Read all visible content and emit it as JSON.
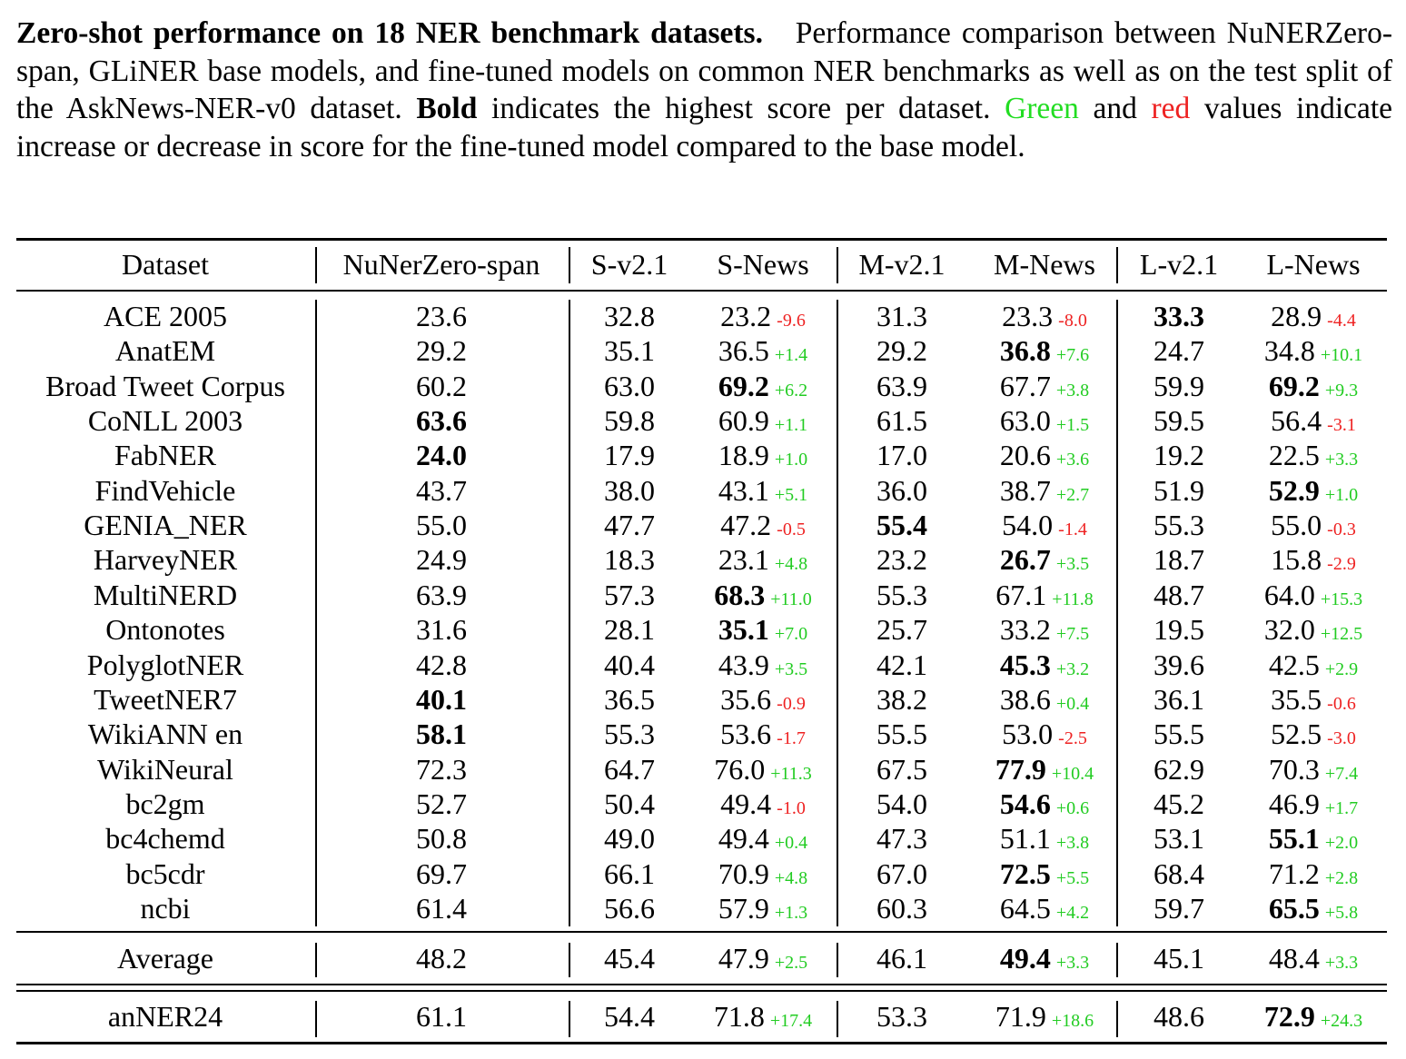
{
  "caption": {
    "lead": "Zero-shot performance on 18 NER benchmark datasets.",
    "part1": "Performance comparison between NuNERZero-span, GLiNER base models, and fine-tuned models on common NER benchmarks as well as on the test split of the AskNews-NER-v0 dataset.",
    "bold_word": "Bold",
    "part2": "indicates the highest score per dataset.",
    "green_word": "Green",
    "and_word": "and",
    "red_word": "red",
    "part3": "values indicate increase or decrease in score for the fine-tuned model compared to the base model."
  },
  "colors": {
    "increase": "#22cc22",
    "decrease": "#ee2222"
  },
  "chart_data": {
    "type": "table",
    "columns": [
      "Dataset",
      "NuNerZero-span",
      "S-v2.1",
      "S-News",
      "M-v2.1",
      "M-News",
      "L-v2.1",
      "L-News"
    ],
    "rows": [
      {
        "dataset": "ACE 2005",
        "cells": [
          {
            "v": "23.6"
          },
          {
            "v": "32.8"
          },
          {
            "v": "23.2",
            "d": "-9.6"
          },
          {
            "v": "31.3"
          },
          {
            "v": "23.3",
            "d": "-8.0"
          },
          {
            "v": "33.3",
            "b": true
          },
          {
            "v": "28.9",
            "d": "-4.4"
          }
        ]
      },
      {
        "dataset": "AnatEM",
        "cells": [
          {
            "v": "29.2"
          },
          {
            "v": "35.1"
          },
          {
            "v": "36.5",
            "d": "+1.4"
          },
          {
            "v": "29.2"
          },
          {
            "v": "36.8",
            "d": "+7.6",
            "b": true
          },
          {
            "v": "24.7"
          },
          {
            "v": "34.8",
            "d": "+10.1"
          }
        ]
      },
      {
        "dataset": "Broad Tweet Corpus",
        "cells": [
          {
            "v": "60.2"
          },
          {
            "v": "63.0"
          },
          {
            "v": "69.2",
            "d": "+6.2",
            "b": true
          },
          {
            "v": "63.9"
          },
          {
            "v": "67.7",
            "d": "+3.8"
          },
          {
            "v": "59.9"
          },
          {
            "v": "69.2",
            "d": "+9.3",
            "b": true
          }
        ]
      },
      {
        "dataset": "CoNLL 2003",
        "cells": [
          {
            "v": "63.6",
            "b": true
          },
          {
            "v": "59.8"
          },
          {
            "v": "60.9",
            "d": "+1.1"
          },
          {
            "v": "61.5"
          },
          {
            "v": "63.0",
            "d": "+1.5"
          },
          {
            "v": "59.5"
          },
          {
            "v": "56.4",
            "d": "-3.1"
          }
        ]
      },
      {
        "dataset": "FabNER",
        "cells": [
          {
            "v": "24.0",
            "b": true
          },
          {
            "v": "17.9"
          },
          {
            "v": "18.9",
            "d": "+1.0"
          },
          {
            "v": "17.0"
          },
          {
            "v": "20.6",
            "d": "+3.6"
          },
          {
            "v": "19.2"
          },
          {
            "v": "22.5",
            "d": "+3.3"
          }
        ]
      },
      {
        "dataset": "FindVehicle",
        "cells": [
          {
            "v": "43.7"
          },
          {
            "v": "38.0"
          },
          {
            "v": "43.1",
            "d": "+5.1"
          },
          {
            "v": "36.0"
          },
          {
            "v": "38.7",
            "d": "+2.7"
          },
          {
            "v": "51.9"
          },
          {
            "v": "52.9",
            "d": "+1.0",
            "b": true
          }
        ]
      },
      {
        "dataset": "GENIA_NER",
        "cells": [
          {
            "v": "55.0"
          },
          {
            "v": "47.7"
          },
          {
            "v": "47.2",
            "d": "-0.5"
          },
          {
            "v": "55.4",
            "b": true
          },
          {
            "v": "54.0",
            "d": "-1.4"
          },
          {
            "v": "55.3"
          },
          {
            "v": "55.0",
            "d": "-0.3"
          }
        ]
      },
      {
        "dataset": "HarveyNER",
        "cells": [
          {
            "v": "24.9"
          },
          {
            "v": "18.3"
          },
          {
            "v": "23.1",
            "d": "+4.8"
          },
          {
            "v": "23.2"
          },
          {
            "v": "26.7",
            "d": "+3.5",
            "b": true
          },
          {
            "v": "18.7"
          },
          {
            "v": "15.8",
            "d": "-2.9"
          }
        ]
      },
      {
        "dataset": "MultiNERD",
        "cells": [
          {
            "v": "63.9"
          },
          {
            "v": "57.3"
          },
          {
            "v": "68.3",
            "d": "+11.0",
            "b": true
          },
          {
            "v": "55.3"
          },
          {
            "v": "67.1",
            "d": "+11.8"
          },
          {
            "v": "48.7"
          },
          {
            "v": "64.0",
            "d": "+15.3"
          }
        ]
      },
      {
        "dataset": "Ontonotes",
        "cells": [
          {
            "v": "31.6"
          },
          {
            "v": "28.1"
          },
          {
            "v": "35.1",
            "d": "+7.0",
            "b": true
          },
          {
            "v": "25.7"
          },
          {
            "v": "33.2",
            "d": "+7.5"
          },
          {
            "v": "19.5"
          },
          {
            "v": "32.0",
            "d": "+12.5"
          }
        ]
      },
      {
        "dataset": "PolyglotNER",
        "cells": [
          {
            "v": "42.8"
          },
          {
            "v": "40.4"
          },
          {
            "v": "43.9",
            "d": "+3.5"
          },
          {
            "v": "42.1"
          },
          {
            "v": "45.3",
            "d": "+3.2",
            "b": true
          },
          {
            "v": "39.6"
          },
          {
            "v": "42.5",
            "d": "+2.9"
          }
        ]
      },
      {
        "dataset": "TweetNER7",
        "cells": [
          {
            "v": "40.1",
            "b": true
          },
          {
            "v": "36.5"
          },
          {
            "v": "35.6",
            "d": "-0.9"
          },
          {
            "v": "38.2"
          },
          {
            "v": "38.6",
            "d": "+0.4"
          },
          {
            "v": "36.1"
          },
          {
            "v": "35.5",
            "d": "-0.6"
          }
        ]
      },
      {
        "dataset": "WikiANN en",
        "cells": [
          {
            "v": "58.1",
            "b": true
          },
          {
            "v": "55.3"
          },
          {
            "v": "53.6",
            "d": "-1.7"
          },
          {
            "v": "55.5"
          },
          {
            "v": "53.0",
            "d": "-2.5"
          },
          {
            "v": "55.5"
          },
          {
            "v": "52.5",
            "d": "-3.0"
          }
        ]
      },
      {
        "dataset": "WikiNeural",
        "cells": [
          {
            "v": "72.3"
          },
          {
            "v": "64.7"
          },
          {
            "v": "76.0",
            "d": "+11.3"
          },
          {
            "v": "67.5"
          },
          {
            "v": "77.9",
            "d": "+10.4",
            "b": true
          },
          {
            "v": "62.9"
          },
          {
            "v": "70.3",
            "d": "+7.4"
          }
        ]
      },
      {
        "dataset": "bc2gm",
        "cells": [
          {
            "v": "52.7"
          },
          {
            "v": "50.4"
          },
          {
            "v": "49.4",
            "d": "-1.0"
          },
          {
            "v": "54.0"
          },
          {
            "v": "54.6",
            "d": "+0.6",
            "b": true
          },
          {
            "v": "45.2"
          },
          {
            "v": "46.9",
            "d": "+1.7"
          }
        ]
      },
      {
        "dataset": "bc4chemd",
        "cells": [
          {
            "v": "50.8"
          },
          {
            "v": "49.0"
          },
          {
            "v": "49.4",
            "d": "+0.4"
          },
          {
            "v": "47.3"
          },
          {
            "v": "51.1",
            "d": "+3.8"
          },
          {
            "v": "53.1"
          },
          {
            "v": "55.1",
            "d": "+2.0",
            "b": true
          }
        ]
      },
      {
        "dataset": "bc5cdr",
        "cells": [
          {
            "v": "69.7"
          },
          {
            "v": "66.1"
          },
          {
            "v": "70.9",
            "d": "+4.8"
          },
          {
            "v": "67.0"
          },
          {
            "v": "72.5",
            "d": "+5.5",
            "b": true
          },
          {
            "v": "68.4"
          },
          {
            "v": "71.2",
            "d": "+2.8"
          }
        ]
      },
      {
        "dataset": "ncbi",
        "cells": [
          {
            "v": "61.4"
          },
          {
            "v": "56.6"
          },
          {
            "v": "57.9",
            "d": "+1.3"
          },
          {
            "v": "60.3"
          },
          {
            "v": "64.5",
            "d": "+4.2"
          },
          {
            "v": "59.7"
          },
          {
            "v": "65.5",
            "d": "+5.8",
            "b": true
          }
        ]
      }
    ],
    "average": {
      "dataset": "Average",
      "cells": [
        {
          "v": "48.2"
        },
        {
          "v": "45.4"
        },
        {
          "v": "47.9",
          "d": "+2.5"
        },
        {
          "v": "46.1"
        },
        {
          "v": "49.4",
          "d": "+3.3",
          "b": true
        },
        {
          "v": "45.1"
        },
        {
          "v": "48.4",
          "d": "+3.3"
        }
      ]
    },
    "anner": {
      "dataset": "anNER24",
      "cells": [
        {
          "v": "61.1"
        },
        {
          "v": "54.4"
        },
        {
          "v": "71.8",
          "d": "+17.4"
        },
        {
          "v": "53.3"
        },
        {
          "v": "71.9",
          "d": "+18.6"
        },
        {
          "v": "48.6"
        },
        {
          "v": "72.9",
          "d": "+24.3",
          "b": true
        }
      ]
    }
  }
}
